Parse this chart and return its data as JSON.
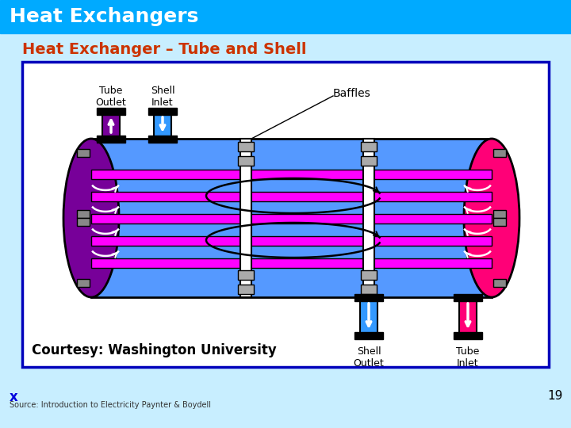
{
  "title": "Heat Exchangers",
  "subtitle": "Heat Exchanger – Tube and Shell",
  "source_text": "Source: Introduction to Electricity Paynter & Boydell",
  "page_number": "19",
  "x_marker": "x",
  "header_color": "#00AAFF",
  "bg_color": "#C8EEFF",
  "subtitle_color": "#CC3300",
  "title_color": "#FFFFFF",
  "diagram_border_color": "#0000BB",
  "shell_body_color": "#5599FF",
  "tube_color_left": "#770099",
  "tube_color_right": "#FF0077",
  "pipe_color": "#FF00FF",
  "courtesy_text": "Courtesy: Washington University",
  "label_tube_outlet": "Tube\nOutlet",
  "label_shell_inlet": "Shell\nInlet",
  "label_baffles": "Baffles",
  "label_shell_outlet": "Shell\nOutlet",
  "label_tube_inlet": "Tube\nInlet"
}
